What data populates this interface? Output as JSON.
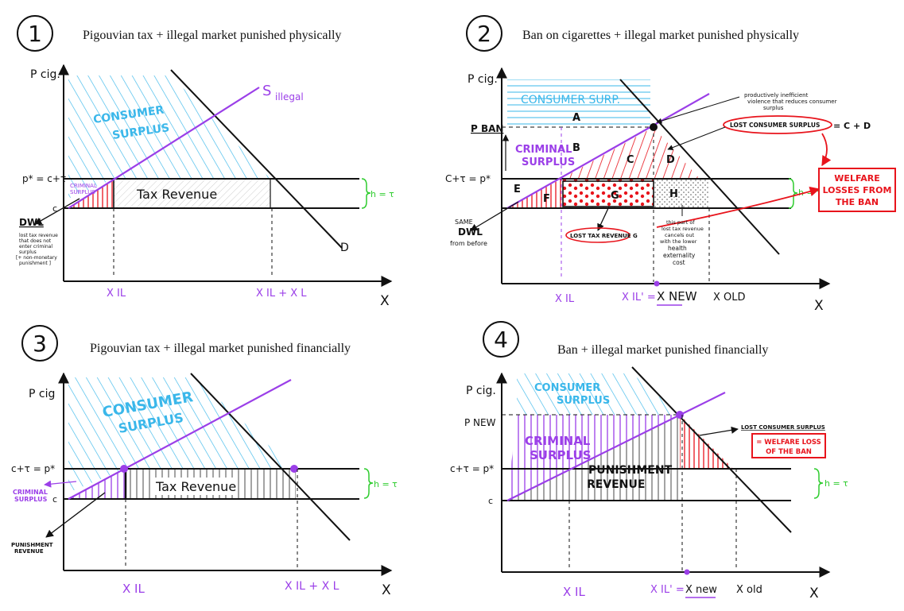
{
  "panels": [
    {
      "number": "1",
      "title": "Pigouvian tax + illegal market punished physically",
      "labels": {
        "y_axis": "P cig.",
        "x_axis": "X",
        "p_star": "p* = c+τ",
        "c": "c",
        "s_illegal": "S",
        "s_illegal_sub": "illegal",
        "consumer_surplus_1": "CONSUMER",
        "consumer_surplus_2": "SURPLUS",
        "criminal_surplus_1": "CRIMINAL",
        "criminal_surplus_2": "SURPLUS",
        "tax_revenue": "Tax Revenue",
        "h_equals": "h = τ",
        "dwl": "DWL",
        "dwl_note_1": "lost tax revenue",
        "dwl_note_2": "that does not",
        "dwl_note_3": "enter criminal",
        "dwl_note_4": "surplus",
        "dwl_note_5": "[+ non-monetary",
        "dwl_note_6": "punishment ]",
        "demand": "D",
        "x_il": "X IL",
        "x_il_plus_l": "X IL + X L"
      }
    },
    {
      "number": "2",
      "title": "Ban on cigarettes + illegal market punished physically",
      "labels": {
        "y_axis": "P cig.",
        "x_axis": "X",
        "p_ban": "P BAN",
        "p_star": "C+τ = p*",
        "consumer_surp": "CONSUMER SURP.",
        "a": "A",
        "b": "B",
        "c_area": "C",
        "d": "D",
        "e": "E",
        "f": "F",
        "g": "G",
        "h_area": "H",
        "criminal_surplus_1": "CRIMINAL",
        "criminal_surplus_2": "SURPLUS",
        "h_equals": "h = τ",
        "same_dwl_1": "SAME",
        "same_dwl_2": "DWL",
        "same_dwl_3": "from before",
        "lost_tax_revenue": "LOST TAX REVENUE G",
        "lost_consumer_surplus": "LOST CONSUMER SURPLUS",
        "lost_cs_eq": "= C + D",
        "violence_note_1": "productively inefficient",
        "violence_note_2": "violence that reduces consumer",
        "violence_note_3": "surplus",
        "welfare_1": "WELFARE",
        "welfare_2": "LOSSES FROM",
        "welfare_3": "THE BAN",
        "h_note_1": "this part of",
        "h_note_2": "lost tax revenue",
        "h_note_3": "cancels out",
        "h_note_4": "with the lower",
        "h_note_5": "health",
        "h_note_6": "externality",
        "h_note_7": "cost",
        "x_il": "X IL",
        "x_il_prime": "X IL' =",
        "x_new": "X NEW",
        "x_old": "X OLD"
      }
    },
    {
      "number": "3",
      "title": "Pigouvian tax + illegal market punished financially",
      "labels": {
        "y_axis": "P cig",
        "x_axis": "X",
        "p_star": "c+τ = p*",
        "c": "c",
        "consumer_surplus_1": "CONSUMER",
        "consumer_surplus_2": "SURPLUS",
        "criminal_surplus_1": "CRIMINAL",
        "criminal_surplus_2": "SURPLUS",
        "tax_revenue": "Tax Revenue",
        "h_equals": "h = τ",
        "punishment_1": "PUNISHMENT",
        "punishment_2": "REVENUE",
        "x_il": "X IL",
        "x_il_plus_l": "X IL + X L"
      }
    },
    {
      "number": "4",
      "title": "Ban + illegal market punished financially",
      "labels": {
        "y_axis": "P cig.",
        "x_axis": "X",
        "p_new": "P NEW",
        "p_star": "c+τ = p*",
        "c": "c",
        "consumer_surplus_1": "CONSUMER",
        "consumer_surplus_2": "SURPLUS",
        "criminal_surplus_1": "CRIMINAL",
        "criminal_surplus_2": "SURPLUS",
        "punishment_1": "PUNISHMENT",
        "punishment_2": "REVENUE",
        "h_equals": "h = τ",
        "lost_cs": "LOST CONSUMER SURPLUS",
        "welfare_1": "= WELFARE LOSS",
        "welfare_2": "OF THE BAN",
        "x_il": "X IL",
        "x_il_prime": "X IL' =",
        "x_new": "X new",
        "x_old": "X old"
      }
    }
  ],
  "colors": {
    "ink": "#111111",
    "consumer": "#3ab7ea",
    "purple": "#9b3fe8",
    "red": "#e8141c",
    "green": "#2ecc2e"
  }
}
